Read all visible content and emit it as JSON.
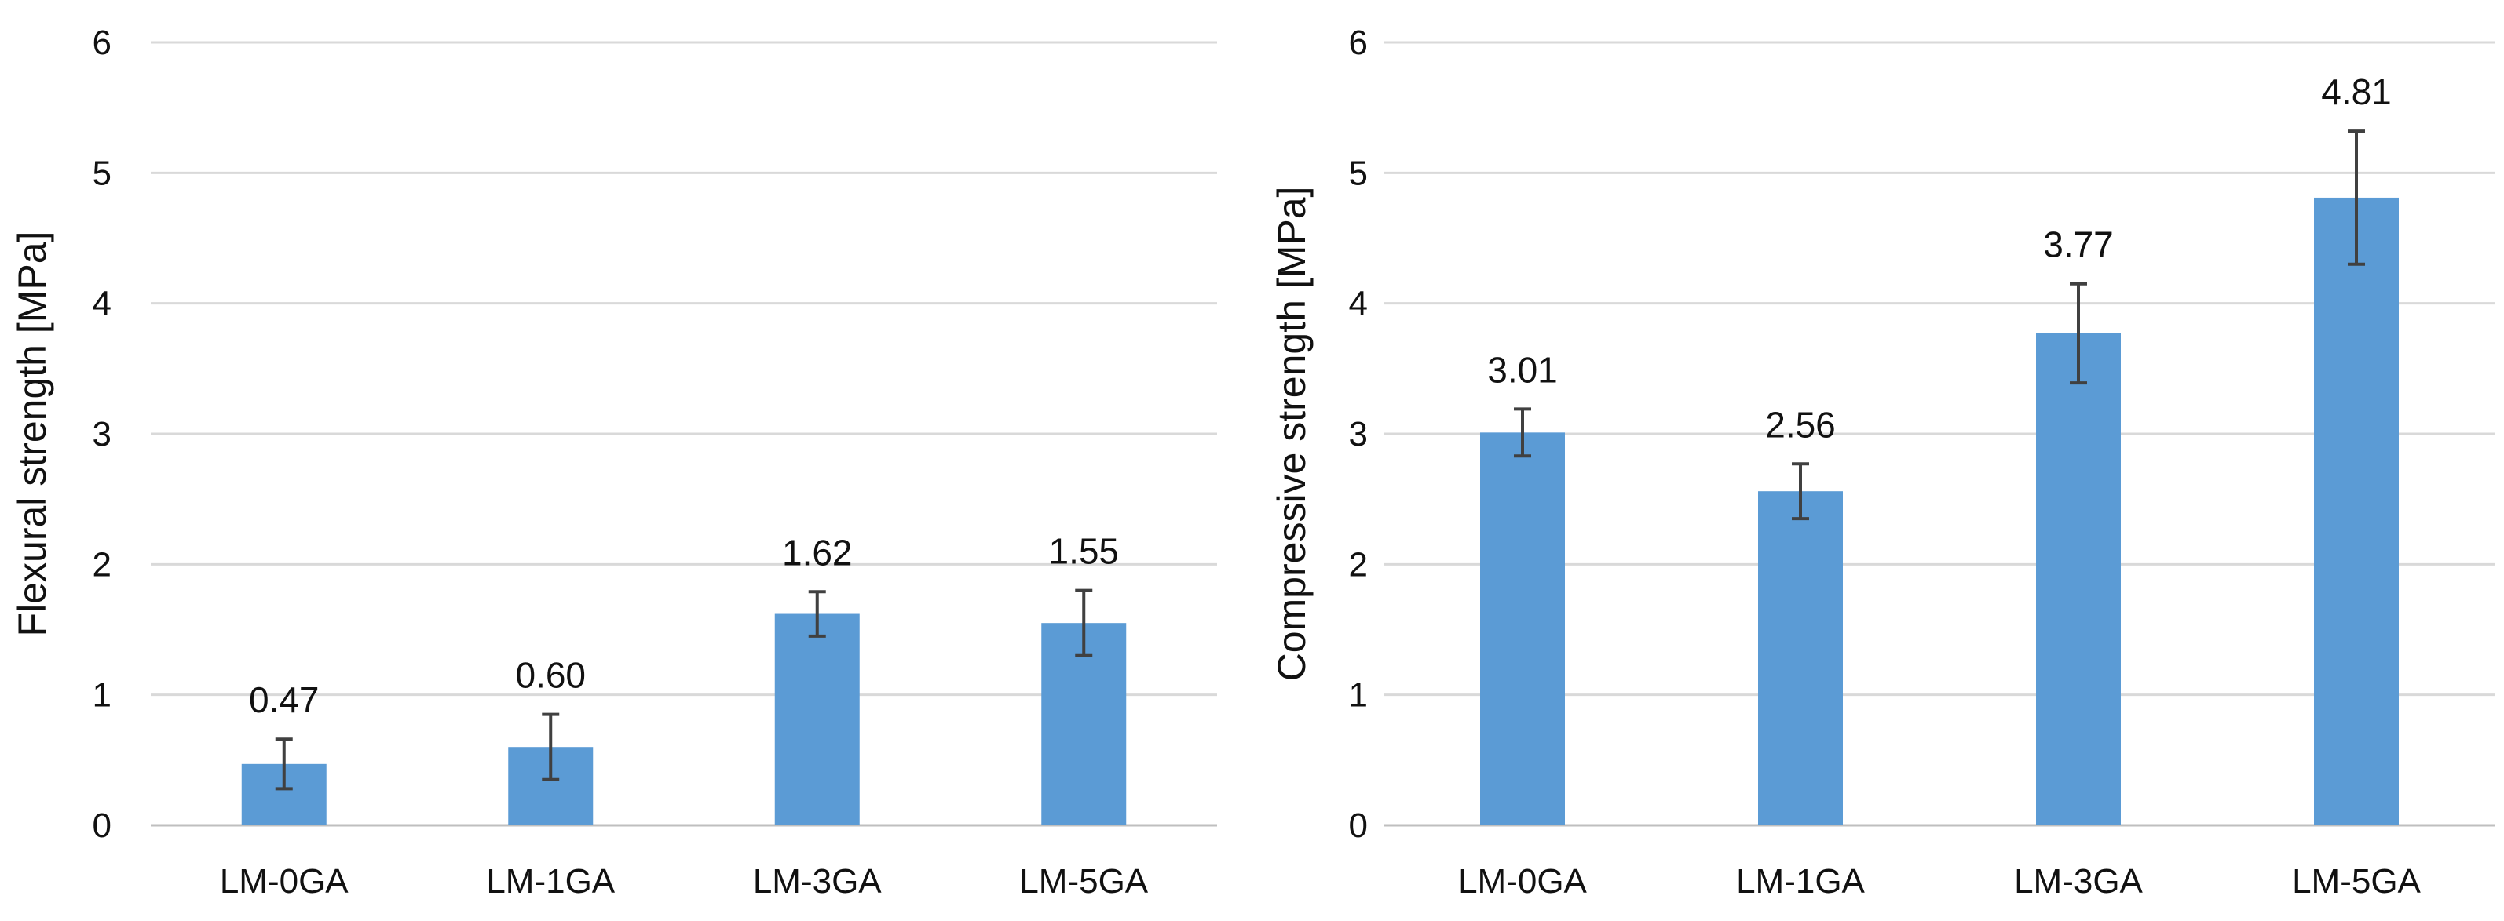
{
  "chart_data": [
    {
      "type": "bar",
      "title": "",
      "xlabel": "",
      "ylabel": "Flexural strength [MPa]",
      "ylim": [
        0,
        6
      ],
      "yticks": [
        "0",
        "1",
        "2",
        "3",
        "4",
        "5",
        "6"
      ],
      "categories": [
        "LM-0GA",
        "LM-1GA",
        "LM-3GA",
        "LM-5GA"
      ],
      "values": [
        0.47,
        0.6,
        1.62,
        1.55
      ],
      "value_labels": [
        "0.47",
        "0.60",
        "1.62",
        "1.55"
      ],
      "error": [
        0.19,
        0.25,
        0.17,
        0.25
      ],
      "grid": true,
      "color": "#5b9bd5"
    },
    {
      "type": "bar",
      "title": "",
      "xlabel": "",
      "ylabel": "Compressive strength [MPa]",
      "ylim": [
        0,
        6
      ],
      "yticks": [
        "0",
        "1",
        "2",
        "3",
        "4",
        "5",
        "6"
      ],
      "categories": [
        "LM-0GA",
        "LM-1GA",
        "LM-3GA",
        "LM-5GA"
      ],
      "values": [
        3.01,
        2.56,
        3.77,
        4.81
      ],
      "value_labels": [
        "3.01",
        "2.56",
        "3.77",
        "4.81"
      ],
      "error": [
        0.18,
        0.21,
        0.38,
        0.51
      ],
      "grid": true,
      "color": "#5b9bd5"
    }
  ]
}
